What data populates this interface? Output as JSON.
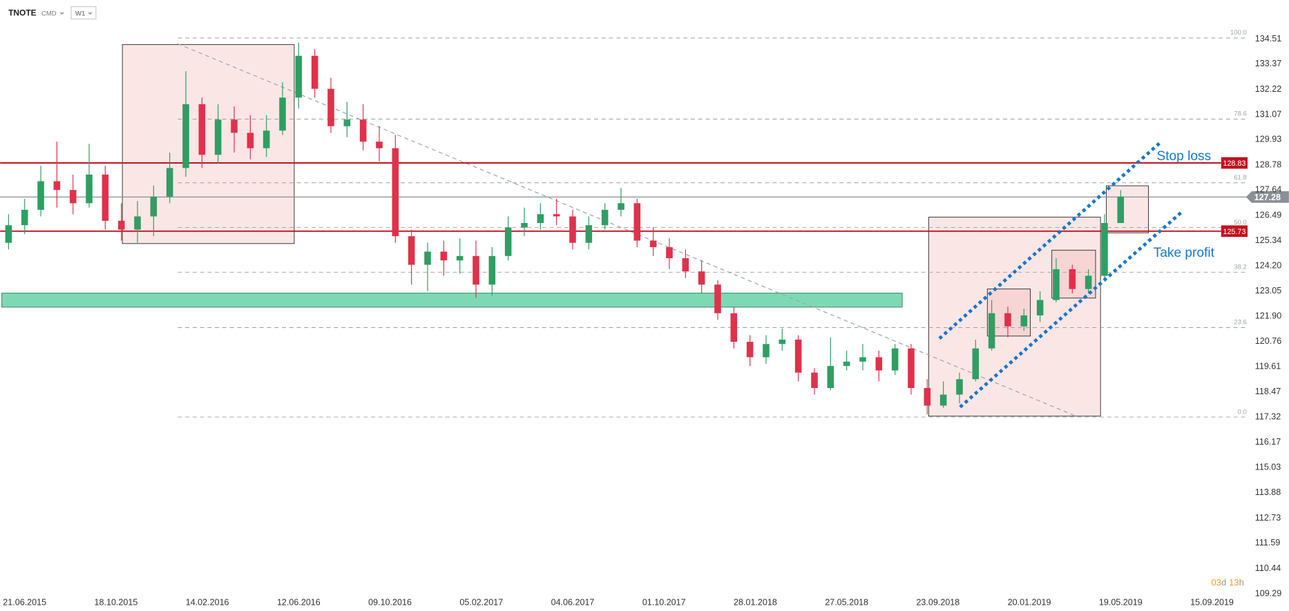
{
  "header": {
    "symbol": "TNOTE",
    "market": "CMD",
    "interval": "W1"
  },
  "chart_data": {
    "type": "candlestick",
    "x": [
      "31.05.2015",
      "21.06.2015",
      "12.07.2015",
      "02.08.2015",
      "23.08.2015",
      "13.09.2015",
      "04.10.2015",
      "25.10.2015",
      "15.11.2015",
      "06.12.2015",
      "27.12.2015",
      "17.01.2016",
      "07.02.2016",
      "28.02.2016",
      "20.03.2016",
      "10.04.2016",
      "01.05.2016",
      "22.05.2016",
      "12.06.2016",
      "03.07.2016",
      "24.07.2016",
      "14.08.2016",
      "04.09.2016",
      "25.09.2016",
      "16.10.2016",
      "06.11.2016",
      "27.11.2016",
      "18.12.2016",
      "08.01.2017",
      "29.01.2017",
      "19.02.2017",
      "12.03.2017",
      "02.04.2017",
      "23.04.2017",
      "14.05.2017",
      "04.06.2017",
      "25.06.2017",
      "16.07.2017",
      "06.08.2017",
      "27.08.2017",
      "17.09.2017",
      "08.10.2017",
      "29.10.2017",
      "19.11.2017",
      "10.12.2017",
      "31.12.2017",
      "21.01.2018",
      "11.02.2018",
      "04.03.2018",
      "25.03.2018",
      "15.04.2018",
      "06.05.2018",
      "27.05.2018",
      "17.06.2018",
      "08.07.2018",
      "29.07.2018",
      "19.08.2018",
      "09.09.2018",
      "30.09.2018",
      "21.10.2018",
      "11.11.2018",
      "02.12.2018",
      "23.12.2018",
      "13.01.2019",
      "03.02.2019",
      "24.02.2019",
      "17.03.2019",
      "07.04.2019",
      "28.04.2019",
      "19.05.2019"
    ],
    "open": [
      125.2,
      126.0,
      126.7,
      128.0,
      127.6,
      127.0,
      128.3,
      126.2,
      125.8,
      126.4,
      127.3,
      128.6,
      131.5,
      129.2,
      130.8,
      130.2,
      129.5,
      130.3,
      131.8,
      133.7,
      132.2,
      130.5,
      130.8,
      129.8,
      129.5,
      125.5,
      124.2,
      124.8,
      124.4,
      124.6,
      123.3,
      124.6,
      125.9,
      126.1,
      126.5,
      126.4,
      125.2,
      126.0,
      126.7,
      127.0,
      125.3,
      125.0,
      124.5,
      123.9,
      123.3,
      122.0,
      120.7,
      120.0,
      120.6,
      120.8,
      119.3,
      118.6,
      119.6,
      119.8,
      120.0,
      119.4,
      120.4,
      118.6,
      117.8,
      118.3,
      119.0,
      120.4,
      122.0,
      121.4,
      121.9,
      122.6,
      124.0,
      123.1,
      123.7,
      126.1
    ],
    "high": [
      126.5,
      127.2,
      128.7,
      129.8,
      128.3,
      129.7,
      128.7,
      127.0,
      127.1,
      127.8,
      129.3,
      133.0,
      131.8,
      131.5,
      131.4,
      131.0,
      131.0,
      132.5,
      134.3,
      134.0,
      132.7,
      131.6,
      131.5,
      130.5,
      130.1,
      125.8,
      125.2,
      125.3,
      125.4,
      125.3,
      125.0,
      126.4,
      126.8,
      127.0,
      127.2,
      126.7,
      126.4,
      127.0,
      127.7,
      127.2,
      125.9,
      125.4,
      124.9,
      124.4,
      123.5,
      122.3,
      121.0,
      121.0,
      121.3,
      121.0,
      119.5,
      120.9,
      120.3,
      120.6,
      120.3,
      120.6,
      120.6,
      119.0,
      118.9,
      119.3,
      120.8,
      122.6,
      122.3,
      122.2,
      123.0,
      124.5,
      124.2,
      124.0,
      126.5,
      127.6
    ],
    "low": [
      124.9,
      125.6,
      126.4,
      126.8,
      126.5,
      126.8,
      125.8,
      125.3,
      125.2,
      125.5,
      127.0,
      128.2,
      128.6,
      128.8,
      129.3,
      129.0,
      129.1,
      130.1,
      131.3,
      131.8,
      130.2,
      130.0,
      129.4,
      128.9,
      125.2,
      123.3,
      123.0,
      123.7,
      123.8,
      122.7,
      122.8,
      124.4,
      125.5,
      125.8,
      126.0,
      124.9,
      124.9,
      125.8,
      126.4,
      125.0,
      124.6,
      124.0,
      123.6,
      122.9,
      121.7,
      120.4,
      119.6,
      119.7,
      120.3,
      118.9,
      118.3,
      118.5,
      119.4,
      119.4,
      118.9,
      119.2,
      118.3,
      117.4,
      117.7,
      117.9,
      118.9,
      120.3,
      120.9,
      121.2,
      121.6,
      122.5,
      122.9,
      122.9,
      123.6,
      126.1
    ],
    "close": [
      126.0,
      126.7,
      128.0,
      127.6,
      127.0,
      128.3,
      126.2,
      125.8,
      126.4,
      127.3,
      128.6,
      131.5,
      129.2,
      130.8,
      130.2,
      129.5,
      130.3,
      131.8,
      133.7,
      132.2,
      130.5,
      130.8,
      129.8,
      129.5,
      125.5,
      124.2,
      124.8,
      124.4,
      124.6,
      123.3,
      124.6,
      125.9,
      126.1,
      126.5,
      126.4,
      125.2,
      126.0,
      126.7,
      127.0,
      125.3,
      125.0,
      124.5,
      123.9,
      123.3,
      122.0,
      120.7,
      120.0,
      120.6,
      120.8,
      119.3,
      118.6,
      119.6,
      119.8,
      120.0,
      119.4,
      120.4,
      118.6,
      117.8,
      118.3,
      119.0,
      120.4,
      122.0,
      121.4,
      121.9,
      122.6,
      124.0,
      123.1,
      123.7,
      126.1,
      127.3
    ],
    "up_color": "#2f9e62",
    "down_color": "#e0314b",
    "xlim": [
      "20.05.2015",
      "26.10.2019"
    ],
    "xticks": [
      "21.06.2015",
      "18.10.2015",
      "14.02.2016",
      "12.06.2016",
      "09.10.2016",
      "05.02.2017",
      "04.06.2017",
      "01.10.2017",
      "28.01.2018",
      "27.05.2018",
      "23.09.2018",
      "20.01.2019",
      "19.05.2019",
      "15.09.2019"
    ],
    "ylim": [
      109.29,
      134.51
    ],
    "yticks": [
      134.51,
      133.37,
      132.22,
      131.07,
      129.93,
      128.78,
      127.64,
      126.49,
      125.34,
      {
        "value": 124.2,
        "label": "124.20"
      },
      123.05,
      {
        "value": 121.9,
        "label": "121.90"
      },
      120.76,
      119.61,
      118.47,
      117.32,
      116.17,
      115.03,
      113.88,
      112.73,
      111.59,
      110.44,
      109.29
    ],
    "levels": [
      {
        "value": 128.83,
        "color": "#c1121f"
      },
      {
        "value": 125.73,
        "color": "#c1121f"
      }
    ],
    "last_price": {
      "value": 127.28,
      "color": "#8a9096"
    },
    "fib": {
      "range": [
        117.28,
        134.51
      ],
      "levels": [
        {
          "value": 100,
          "label": "100.0"
        },
        {
          "value": 78.6,
          "label": "78.6"
        },
        {
          "value": 61.8,
          "label": "61.8"
        },
        {
          "value": 50,
          "label": "50.0"
        },
        {
          "value": 38.2,
          "label": "38.2"
        },
        {
          "value": 23.6,
          "label": "23.6"
        },
        {
          "value": 0,
          "label": "0.0"
        }
      ]
    },
    "annotations": {
      "stop_loss": "Stop loss",
      "take_profit": "Take profit"
    },
    "countdown": {
      "days": "03",
      "day_unit": "d",
      "hours": "13",
      "hour_unit": "h"
    }
  }
}
